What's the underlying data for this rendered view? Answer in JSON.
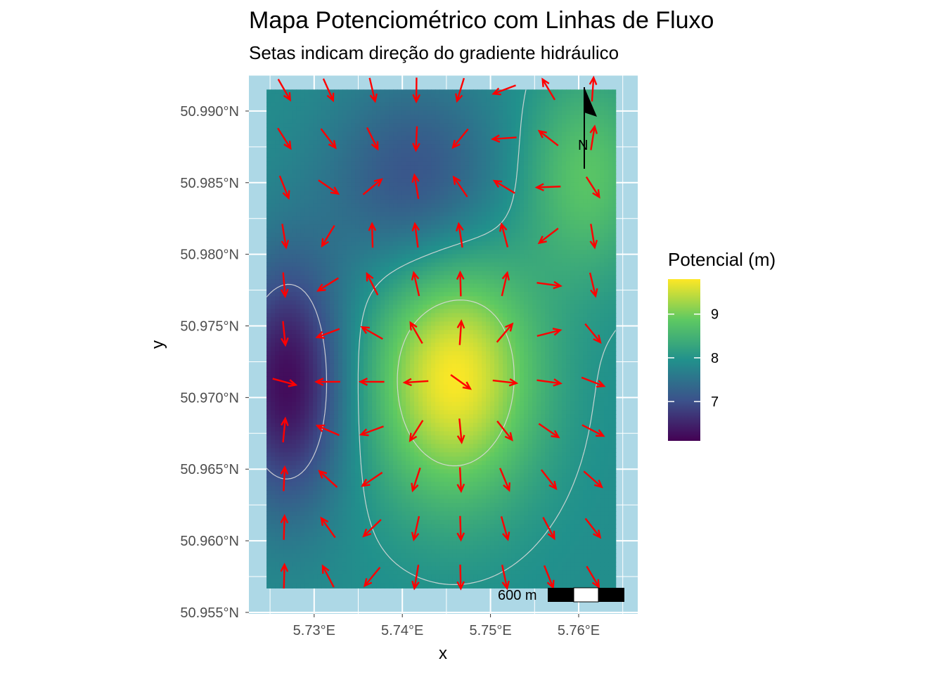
{
  "title": "Mapa Potenciométrico com Linhas de Fluxo",
  "subtitle": "Setas indicam direção do gradiente hidráulico",
  "colors": {
    "panel_background": "#add8e6",
    "grid": "#ffffff",
    "arrow": "#ff0000",
    "contour": "#d9d9d9",
    "viridis": [
      "#440154",
      "#3b528b",
      "#21918c",
      "#5ec962",
      "#fde725"
    ]
  },
  "chart_data": {
    "type": "heatmap",
    "title": "Mapa Potenciométrico com Linhas de Fluxo",
    "subtitle": "Setas indicam direção do gradiente hidráulico",
    "xlabel": "x",
    "ylabel": "y",
    "xlim": [
      5.7226,
      5.7667
    ],
    "ylim": [
      50.9549,
      50.9925
    ],
    "data_extent": {
      "x": [
        5.7246,
        5.7642
      ],
      "y": [
        50.9567,
        50.9915
      ]
    },
    "x_ticks": [
      {
        "value": 5.73,
        "label": "5.73°E"
      },
      {
        "value": 5.74,
        "label": "5.74°E"
      },
      {
        "value": 5.75,
        "label": "5.75°E"
      },
      {
        "value": 5.76,
        "label": "5.76°E"
      }
    ],
    "y_ticks": [
      {
        "value": 50.955,
        "label": "50.955°N"
      },
      {
        "value": 50.96,
        "label": "50.960°N"
      },
      {
        "value": 50.965,
        "label": "50.965°N"
      },
      {
        "value": 50.97,
        "label": "50.970°N"
      },
      {
        "value": 50.975,
        "label": "50.975°N"
      },
      {
        "value": 50.98,
        "label": "50.980°N"
      },
      {
        "value": 50.985,
        "label": "50.985°N"
      },
      {
        "value": 50.99,
        "label": "50.990°N"
      }
    ],
    "grid": true,
    "fill_legend": {
      "title": "Potencial (m)",
      "min": 6.1,
      "max": 9.8,
      "breaks": [
        {
          "value": 7,
          "label": "7"
        },
        {
          "value": 8,
          "label": "8"
        },
        {
          "value": 9,
          "label": "9"
        }
      ],
      "position": "right"
    },
    "surface": {
      "base": 7.9,
      "features": [
        {
          "kind": "high",
          "x": 5.7459,
          "y": 50.9715,
          "amplitude": 1.9,
          "sigma_x": 0.0065,
          "sigma_y": 0.006
        },
        {
          "kind": "high",
          "x": 5.7608,
          "y": 50.9855,
          "amplitude": 0.9,
          "sigma_x": 0.005,
          "sigma_y": 0.005
        },
        {
          "kind": "low",
          "x": 5.727,
          "y": 50.971,
          "amplitude": -1.7,
          "sigma_x": 0.0045,
          "sigma_y": 0.006
        },
        {
          "kind": "low",
          "x": 5.7415,
          "y": 50.985,
          "amplitude": -0.9,
          "sigma_x": 0.007,
          "sigma_y": 0.005
        }
      ]
    },
    "contour_levels": [
      7,
      8,
      9
    ],
    "arrow_grid": {
      "x": [
        5.7266,
        5.7316,
        5.7366,
        5.7416,
        5.7466,
        5.7516,
        5.7566,
        5.7616
      ],
      "y": [
        50.9575,
        50.9609,
        50.9643,
        50.9677,
        50.9711,
        50.9745,
        50.9779,
        50.9813,
        50.9847,
        50.9881,
        50.9915
      ]
    },
    "north_arrow": {
      "label": "N",
      "position": "top-right"
    },
    "scale_bar": {
      "label": "600 m",
      "position": "bottom-right"
    }
  }
}
